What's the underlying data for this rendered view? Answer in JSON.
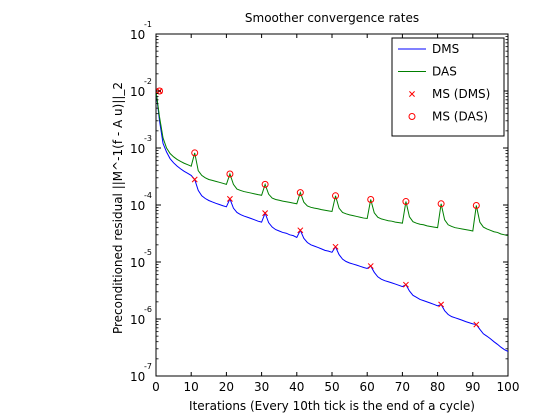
{
  "chart_data": {
    "type": "line",
    "title": "Smoother convergence rates",
    "xlabel": "Iterations (Every 10th tick is the end of a cycle)",
    "ylabel": "Preconditioned residual ||M^-1(f - A u)||_2",
    "xlim": [
      0,
      100
    ],
    "ylim_log10": [
      -7,
      -1
    ],
    "yscale": "log",
    "x_ticks": [
      0,
      10,
      20,
      30,
      40,
      50,
      60,
      70,
      80,
      90,
      100
    ],
    "y_tick_exponents": [
      -7,
      -6,
      -5,
      -4,
      -3,
      -2,
      -1
    ],
    "y_tick_base": "10",
    "grid": false,
    "legend_position": "top-right",
    "series": [
      {
        "name": "DMS",
        "color": "#0000ff",
        "marker": "line",
        "points": [
          [
            0,
            0.01
          ],
          [
            1,
            0.003
          ],
          [
            2,
            0.0012
          ],
          [
            3,
            0.00085
          ],
          [
            4,
            0.00065
          ],
          [
            5,
            0.00055
          ],
          [
            6,
            0.00048
          ],
          [
            7,
            0.00043
          ],
          [
            8,
            0.00039
          ],
          [
            9,
            0.00036
          ],
          [
            10,
            0.00033
          ],
          [
            11,
            0.00028
          ],
          [
            12,
            0.00018
          ],
          [
            13,
            0.000145
          ],
          [
            14,
            0.00013
          ],
          [
            15,
            0.00012
          ],
          [
            16,
            0.000113
          ],
          [
            17,
            0.000107
          ],
          [
            18,
            0.000102
          ],
          [
            19,
            9.7e-05
          ],
          [
            20,
            9.3e-05
          ],
          [
            21,
            0.000128
          ],
          [
            22,
            8.8e-05
          ],
          [
            23,
            7.4e-05
          ],
          [
            24,
            6.8e-05
          ],
          [
            25,
            6.4e-05
          ],
          [
            26,
            6.1e-05
          ],
          [
            27,
            5.8e-05
          ],
          [
            28,
            5.5e-05
          ],
          [
            29,
            5.2e-05
          ],
          [
            30,
            5e-05
          ],
          [
            31,
            7.2e-05
          ],
          [
            32,
            4.9e-05
          ],
          [
            33,
            4.1e-05
          ],
          [
            34,
            3.7e-05
          ],
          [
            35,
            3.5e-05
          ],
          [
            36,
            3.3e-05
          ],
          [
            37,
            3.2e-05
          ],
          [
            38,
            3e-05
          ],
          [
            39,
            2.9e-05
          ],
          [
            40,
            2.7e-05
          ],
          [
            41,
            3.6e-05
          ],
          [
            42,
            2.6e-05
          ],
          [
            43,
            2.2e-05
          ],
          [
            44,
            2e-05
          ],
          [
            45,
            1.9e-05
          ],
          [
            46,
            1.8e-05
          ],
          [
            47,
            1.7e-05
          ],
          [
            48,
            1.6e-05
          ],
          [
            49,
            1.55e-05
          ],
          [
            50,
            1.48e-05
          ],
          [
            51,
            1.85e-05
          ],
          [
            52,
            1.35e-05
          ],
          [
            53,
            1.12e-05
          ],
          [
            54,
            1.02e-05
          ],
          [
            55,
            9.6e-06
          ],
          [
            56,
            9.2e-06
          ],
          [
            57,
            8.8e-06
          ],
          [
            58,
            8.4e-06
          ],
          [
            59,
            8e-06
          ],
          [
            60,
            7.7e-06
          ],
          [
            61,
            8.5e-06
          ],
          [
            62,
            6.6e-06
          ],
          [
            63,
            5.5e-06
          ],
          [
            64,
            5e-06
          ],
          [
            65,
            4.7e-06
          ],
          [
            66,
            4.5e-06
          ],
          [
            67,
            4.3e-06
          ],
          [
            68,
            4.1e-06
          ],
          [
            69,
            3.9e-06
          ],
          [
            70,
            3.7e-06
          ],
          [
            71,
            4e-06
          ],
          [
            72,
            3.1e-06
          ],
          [
            73,
            2.6e-06
          ],
          [
            74,
            2.4e-06
          ],
          [
            75,
            2.2e-06
          ],
          [
            76,
            2.1e-06
          ],
          [
            77,
            2e-06
          ],
          [
            78,
            1.9e-06
          ],
          [
            79,
            1.8e-06
          ],
          [
            80,
            1.7e-06
          ],
          [
            81,
            1.8e-06
          ],
          [
            82,
            1.4e-06
          ],
          [
            83,
            1.2e-06
          ],
          [
            84,
            1.1e-06
          ],
          [
            85,
            1.05e-06
          ],
          [
            86,
            1e-06
          ],
          [
            87,
            9.5e-07
          ],
          [
            88,
            9e-07
          ],
          [
            89,
            8.6e-07
          ],
          [
            90,
            8.2e-07
          ],
          [
            91,
            8e-07
          ],
          [
            92,
            6.6e-07
          ],
          [
            93,
            5.5e-07
          ],
          [
            94,
            5e-07
          ],
          [
            95,
            4.5e-07
          ],
          [
            96,
            4e-07
          ],
          [
            97,
            3.6e-07
          ],
          [
            98,
            3.2e-07
          ],
          [
            99,
            2.9e-07
          ],
          [
            100,
            2.7e-07
          ]
        ]
      },
      {
        "name": "DAS",
        "color": "#007f00",
        "marker": "line",
        "points": [
          [
            0,
            0.01
          ],
          [
            1,
            0.0035
          ],
          [
            2,
            0.0015
          ],
          [
            3,
            0.001
          ],
          [
            4,
            0.0008
          ],
          [
            5,
            0.0007
          ],
          [
            6,
            0.00063
          ],
          [
            7,
            0.00058
          ],
          [
            8,
            0.00054
          ],
          [
            9,
            0.00051
          ],
          [
            10,
            0.00048
          ],
          [
            11,
            0.00082
          ],
          [
            12,
            0.0004
          ],
          [
            13,
            0.00033
          ],
          [
            14,
            0.0003
          ],
          [
            15,
            0.00028
          ],
          [
            16,
            0.00027
          ],
          [
            17,
            0.00026
          ],
          [
            18,
            0.00025
          ],
          [
            19,
            0.00024
          ],
          [
            20,
            0.00023
          ],
          [
            21,
            0.00035
          ],
          [
            22,
            0.00023
          ],
          [
            23,
            0.00019
          ],
          [
            24,
            0.00018
          ],
          [
            25,
            0.000172
          ],
          [
            26,
            0.000167
          ],
          [
            27,
            0.000162
          ],
          [
            28,
            0.000157
          ],
          [
            29,
            0.000152
          ],
          [
            30,
            0.000148
          ],
          [
            31,
            0.00023
          ],
          [
            32,
            0.000155
          ],
          [
            33,
            0.000132
          ],
          [
            34,
            0.000125
          ],
          [
            35,
            0.000121
          ],
          [
            36,
            0.000117
          ],
          [
            37,
            0.000114
          ],
          [
            38,
            0.000111
          ],
          [
            39,
            0.000108
          ],
          [
            40,
            0.000105
          ],
          [
            41,
            0.000165
          ],
          [
            42,
            0.000112
          ],
          [
            43,
            9.6e-05
          ],
          [
            44,
            9.1e-05
          ],
          [
            45,
            8.8e-05
          ],
          [
            46,
            8.6e-05
          ],
          [
            47,
            8.3e-05
          ],
          [
            48,
            8.1e-05
          ],
          [
            49,
            7.9e-05
          ],
          [
            50,
            7.7e-05
          ],
          [
            51,
            0.000145
          ],
          [
            52,
            8.8e-05
          ],
          [
            53,
            7.4e-05
          ],
          [
            54,
            7e-05
          ],
          [
            55,
            6.7e-05
          ],
          [
            56,
            6.5e-05
          ],
          [
            57,
            6.3e-05
          ],
          [
            58,
            6.1e-05
          ],
          [
            59,
            5.9e-05
          ],
          [
            60,
            5.8e-05
          ],
          [
            61,
            0.000125
          ],
          [
            62,
            7.3e-05
          ],
          [
            63,
            6.1e-05
          ],
          [
            64,
            5.7e-05
          ],
          [
            65,
            5.5e-05
          ],
          [
            66,
            5.3e-05
          ],
          [
            67,
            5.2e-05
          ],
          [
            68,
            5e-05
          ],
          [
            69,
            4.9e-05
          ],
          [
            70,
            4.8e-05
          ],
          [
            71,
            0.000115
          ],
          [
            72,
            6.2e-05
          ],
          [
            73,
            5.1e-05
          ],
          [
            74,
            4.8e-05
          ],
          [
            75,
            4.6e-05
          ],
          [
            76,
            4.5e-05
          ],
          [
            77,
            4.3e-05
          ],
          [
            78,
            4.2e-05
          ],
          [
            79,
            4.1e-05
          ],
          [
            80,
            4e-05
          ],
          [
            81,
            0.000105
          ],
          [
            82,
            5.5e-05
          ],
          [
            83,
            4.5e-05
          ],
          [
            84,
            4.2e-05
          ],
          [
            85,
            4e-05
          ],
          [
            86,
            3.9e-05
          ],
          [
            87,
            3.8e-05
          ],
          [
            88,
            3.7e-05
          ],
          [
            89,
            3.6e-05
          ],
          [
            90,
            3.5e-05
          ],
          [
            91,
            9.8e-05
          ],
          [
            92,
            5e-05
          ],
          [
            93,
            4.1e-05
          ],
          [
            94,
            3.8e-05
          ],
          [
            95,
            3.6e-05
          ],
          [
            96,
            3.4e-05
          ],
          [
            97,
            3.3e-05
          ],
          [
            98,
            3.1e-05
          ],
          [
            99,
            3e-05
          ],
          [
            100,
            2.9e-05
          ]
        ]
      },
      {
        "name": "MS (DMS)",
        "color": "#ff0000",
        "marker": "x",
        "points": [
          [
            1,
            0.01
          ],
          [
            11,
            0.00028
          ],
          [
            21,
            0.000128
          ],
          [
            31,
            7.2e-05
          ],
          [
            41,
            3.6e-05
          ],
          [
            51,
            1.85e-05
          ],
          [
            61,
            8.5e-06
          ],
          [
            71,
            4e-06
          ],
          [
            81,
            1.8e-06
          ],
          [
            91,
            8e-07
          ]
        ]
      },
      {
        "name": "MS (DAS)",
        "color": "#ff0000",
        "marker": "o",
        "points": [
          [
            1,
            0.01
          ],
          [
            11,
            0.00082
          ],
          [
            21,
            0.00035
          ],
          [
            31,
            0.00023
          ],
          [
            41,
            0.000165
          ],
          [
            51,
            0.000145
          ],
          [
            61,
            0.000125
          ],
          [
            71,
            0.000115
          ],
          [
            81,
            0.000105
          ],
          [
            91,
            9.8e-05
          ]
        ]
      }
    ]
  }
}
